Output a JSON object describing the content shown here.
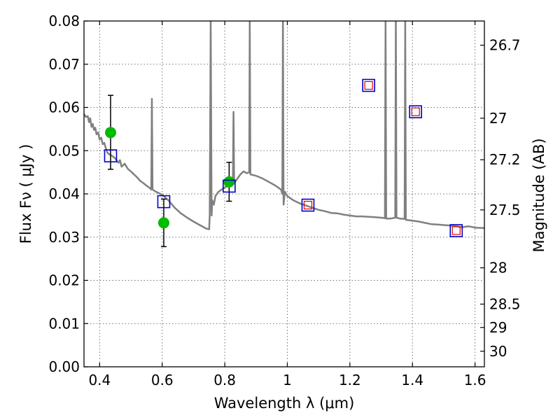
{
  "chart_data": {
    "type": "scatter",
    "title": "",
    "xlabel": "Wavelength  λ (μm)",
    "ylabel": "Flux  Fν  ( μJy )",
    "ylabel_right": "Magnitude (AB)",
    "xlim": [
      0.35,
      1.63
    ],
    "ylim": [
      0.0,
      0.08
    ],
    "grid": true,
    "x_ticks": [
      0.4,
      0.6,
      0.8,
      1.0,
      1.2,
      1.4,
      1.6
    ],
    "x_tick_labels": [
      "0.4",
      "0.6",
      "0.8",
      "1",
      "1.2",
      "1.4",
      "1.6"
    ],
    "y_ticks": [
      0.0,
      0.01,
      0.02,
      0.03,
      0.04,
      0.05,
      0.06,
      0.07,
      0.08
    ],
    "y_tick_labels": [
      "0.00",
      "0.01",
      "0.02",
      "0.03",
      "0.04",
      "0.05",
      "0.06",
      "0.07",
      "0.08"
    ],
    "right_ticks": [
      {
        "label": "26.7",
        "flux": 0.0744
      },
      {
        "label": "27",
        "flux": 0.0575
      },
      {
        "label": "27.2",
        "flux": 0.0479
      },
      {
        "label": "27.5",
        "flux": 0.0363
      },
      {
        "label": "28",
        "flux": 0.0229
      },
      {
        "label": "28.5",
        "flux": 0.0145
      },
      {
        "label": "29",
        "flux": 0.0091
      },
      {
        "label": "30",
        "flux": 0.0036
      }
    ],
    "series": [
      {
        "style": "model-sed-line",
        "color": "#808080",
        "points": [
          [
            0.35,
            0.0585
          ],
          [
            0.356,
            0.0578
          ],
          [
            0.362,
            0.058
          ],
          [
            0.366,
            0.0566
          ],
          [
            0.37,
            0.0575
          ],
          [
            0.374,
            0.0555
          ],
          [
            0.378,
            0.0562
          ],
          [
            0.382,
            0.0548
          ],
          [
            0.386,
            0.0553
          ],
          [
            0.39,
            0.0538
          ],
          [
            0.395,
            0.0542
          ],
          [
            0.4,
            0.0526
          ],
          [
            0.405,
            0.053
          ],
          [
            0.41,
            0.0515
          ],
          [
            0.415,
            0.0518
          ],
          [
            0.42,
            0.0505
          ],
          [
            0.425,
            0.0495
          ],
          [
            0.43,
            0.0492
          ],
          [
            0.44,
            0.0488
          ],
          [
            0.45,
            0.0482
          ],
          [
            0.46,
            0.0472
          ],
          [
            0.465,
            0.0478
          ],
          [
            0.47,
            0.0463
          ],
          [
            0.48,
            0.047
          ],
          [
            0.49,
            0.0458
          ],
          [
            0.5,
            0.0452
          ],
          [
            0.51,
            0.0445
          ],
          [
            0.52,
            0.0438
          ],
          [
            0.53,
            0.043
          ],
          [
            0.54,
            0.0425
          ],
          [
            0.55,
            0.0419
          ],
          [
            0.56,
            0.0414
          ],
          [
            0.565,
            0.041
          ],
          [
            0.567,
            0.062
          ],
          [
            0.569,
            0.041
          ],
          [
            0.58,
            0.0405
          ],
          [
            0.6,
            0.0398
          ],
          [
            0.62,
            0.0385
          ],
          [
            0.64,
            0.0368
          ],
          [
            0.66,
            0.0355
          ],
          [
            0.68,
            0.0345
          ],
          [
            0.7,
            0.0336
          ],
          [
            0.72,
            0.0328
          ],
          [
            0.74,
            0.032
          ],
          [
            0.75,
            0.0318
          ],
          [
            0.752,
            0.035
          ],
          [
            0.755,
            0.08
          ],
          [
            0.758,
            0.035
          ],
          [
            0.76,
            0.0385
          ],
          [
            0.765,
            0.0375
          ],
          [
            0.77,
            0.0395
          ],
          [
            0.78,
            0.0405
          ],
          [
            0.8,
            0.0415
          ],
          [
            0.82,
            0.042
          ],
          [
            0.826,
            0.0425
          ],
          [
            0.828,
            0.059
          ],
          [
            0.83,
            0.0425
          ],
          [
            0.84,
            0.0435
          ],
          [
            0.85,
            0.0445
          ],
          [
            0.86,
            0.0452
          ],
          [
            0.87,
            0.0448
          ],
          [
            0.878,
            0.045
          ],
          [
            0.88,
            0.08
          ],
          [
            0.882,
            0.0445
          ],
          [
            0.9,
            0.0442
          ],
          [
            0.92,
            0.0436
          ],
          [
            0.94,
            0.0428
          ],
          [
            0.96,
            0.042
          ],
          [
            0.98,
            0.041
          ],
          [
            0.984,
            0.04
          ],
          [
            0.986,
            0.08
          ],
          [
            0.988,
            0.0375
          ],
          [
            0.992,
            0.0405
          ],
          [
            1.0,
            0.0395
          ],
          [
            1.02,
            0.0385
          ],
          [
            1.04,
            0.0378
          ],
          [
            1.06,
            0.0373
          ],
          [
            1.08,
            0.0368
          ],
          [
            1.1,
            0.0363
          ],
          [
            1.12,
            0.036
          ],
          [
            1.14,
            0.0356
          ],
          [
            1.16,
            0.0355
          ],
          [
            1.18,
            0.0352
          ],
          [
            1.2,
            0.035
          ],
          [
            1.22,
            0.0348
          ],
          [
            1.24,
            0.0348
          ],
          [
            1.26,
            0.0347
          ],
          [
            1.28,
            0.0346
          ],
          [
            1.3,
            0.0345
          ],
          [
            1.312,
            0.0344
          ],
          [
            1.314,
            0.08
          ],
          [
            1.316,
            0.0343
          ],
          [
            1.33,
            0.0343
          ],
          [
            1.345,
            0.0345
          ],
          [
            1.347,
            0.08
          ],
          [
            1.349,
            0.0345
          ],
          [
            1.36,
            0.0343
          ],
          [
            1.375,
            0.0342
          ],
          [
            1.377,
            0.08
          ],
          [
            1.379,
            0.034
          ],
          [
            1.4,
            0.0338
          ],
          [
            1.42,
            0.0336
          ],
          [
            1.44,
            0.0333
          ],
          [
            1.46,
            0.033
          ],
          [
            1.48,
            0.0329
          ],
          [
            1.5,
            0.0328
          ],
          [
            1.52,
            0.0327
          ],
          [
            1.54,
            0.0325
          ],
          [
            1.56,
            0.0323
          ],
          [
            1.58,
            0.0325
          ],
          [
            1.6,
            0.0322
          ],
          [
            1.63,
            0.0321
          ]
        ]
      },
      {
        "style": "observed-flux",
        "color": "#00bb00",
        "points": [
          {
            "x": 0.435,
            "y": 0.0542,
            "err_lo": 0.0457,
            "err_hi": 0.0628
          },
          {
            "x": 0.605,
            "y": 0.0333,
            "err_lo": 0.0278,
            "err_hi": 0.0388
          },
          {
            "x": 0.814,
            "y": 0.0428,
            "err_lo": 0.0383,
            "err_hi": 0.0473
          }
        ]
      },
      {
        "style": "model-flux-square",
        "color": "#0000cc",
        "points": [
          {
            "x": 0.435,
            "y": 0.0488
          },
          {
            "x": 0.605,
            "y": 0.0382
          },
          {
            "x": 0.814,
            "y": 0.0418
          },
          {
            "x": 1.066,
            "y": 0.0374
          },
          {
            "x": 1.26,
            "y": 0.0651
          },
          {
            "x": 1.41,
            "y": 0.059
          },
          {
            "x": 1.54,
            "y": 0.0315
          }
        ]
      },
      {
        "style": "upper-limit-square",
        "color": "#dd0000",
        "points": [
          {
            "x": 1.066,
            "y": 0.0374
          },
          {
            "x": 1.26,
            "y": 0.0651
          },
          {
            "x": 1.41,
            "y": 0.059
          },
          {
            "x": 1.54,
            "y": 0.0315
          }
        ]
      }
    ]
  }
}
